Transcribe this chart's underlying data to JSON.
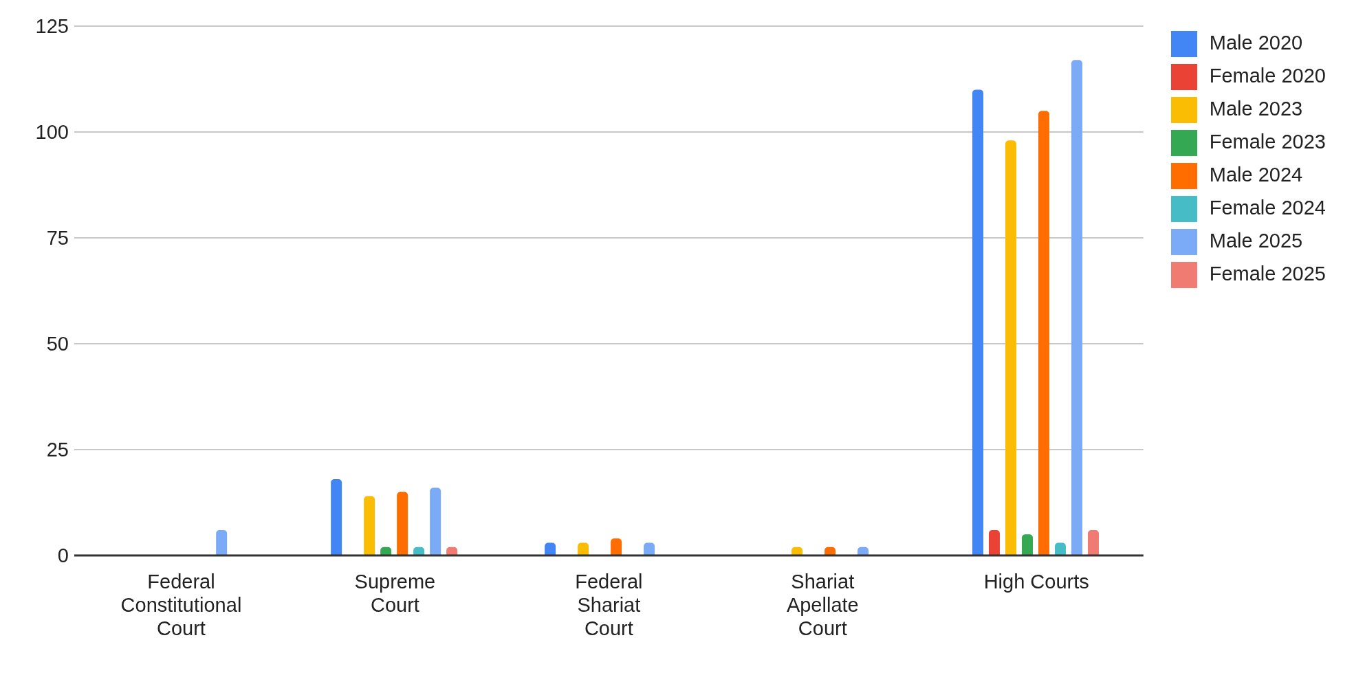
{
  "chart_data": {
    "type": "bar",
    "categories": [
      "Federal Constitutional Court",
      "Supreme Court",
      "Federal Shariat Court",
      "Shariat Apellate Court",
      "High Courts"
    ],
    "series": [
      {
        "name": "Male 2020",
        "color": "#4285f4",
        "values": [
          0,
          18,
          3,
          0,
          110
        ]
      },
      {
        "name": "Female 2020",
        "color": "#ea4335",
        "values": [
          0,
          0,
          0,
          0,
          6
        ]
      },
      {
        "name": "Male 2023",
        "color": "#fbbc04",
        "values": [
          0,
          14,
          3,
          2,
          98
        ]
      },
      {
        "name": "Female 2023",
        "color": "#34a853",
        "values": [
          0,
          2,
          0,
          0,
          5
        ]
      },
      {
        "name": "Male 2024",
        "color": "#ff6d01",
        "values": [
          0,
          15,
          4,
          2,
          105
        ]
      },
      {
        "name": "Female 2024",
        "color": "#46bdc6",
        "values": [
          0,
          2,
          0,
          0,
          3
        ]
      },
      {
        "name": "Male 2025",
        "color": "#7baaf7",
        "values": [
          6,
          16,
          3,
          2,
          117
        ]
      },
      {
        "name": "Female 2025",
        "color": "#f07b72",
        "values": [
          0,
          2,
          0,
          0,
          6
        ]
      }
    ],
    "ylim": [
      0,
      125
    ],
    "yticks": [
      0,
      25,
      50,
      75,
      100,
      125
    ],
    "grid": "y",
    "legend": "top right"
  }
}
